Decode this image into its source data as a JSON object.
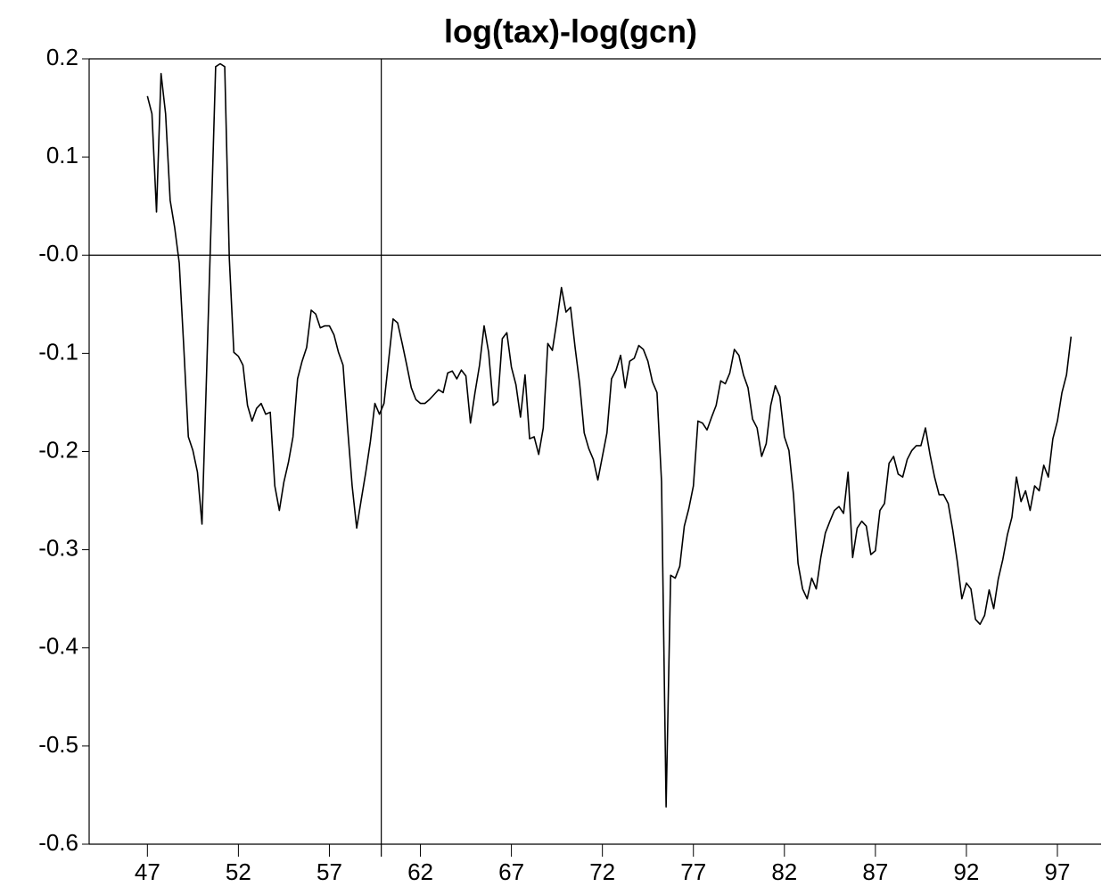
{
  "chart_data": {
    "type": "line",
    "title": "log(tax)-log(gcn)",
    "color": "#000000",
    "x": [
      47,
      47.25,
      47.5,
      47.75,
      48,
      48.25,
      48.5,
      48.75,
      49,
      49.25,
      49.5,
      49.75,
      50,
      50.25,
      50.5,
      50.75,
      51,
      51.25,
      51.5,
      51.75,
      52,
      52.25,
      52.5,
      52.75,
      53,
      53.25,
      53.5,
      53.75,
      54,
      54.25,
      54.5,
      54.75,
      55,
      55.25,
      55.5,
      55.75,
      56,
      56.25,
      56.5,
      56.75,
      57,
      57.25,
      57.5,
      57.75,
      58,
      58.25,
      58.5,
      58.75,
      59,
      59.25,
      59.5,
      59.75,
      60,
      60.25,
      60.5,
      60.75,
      61,
      61.25,
      61.5,
      61.75,
      62,
      62.25,
      62.5,
      62.75,
      63,
      63.25,
      63.5,
      63.75,
      64,
      64.25,
      64.5,
      64.75,
      65,
      65.25,
      65.5,
      65.75,
      66,
      66.25,
      66.5,
      66.75,
      67,
      67.25,
      67.5,
      67.75,
      68,
      68.25,
      68.5,
      68.75,
      69,
      69.25,
      69.5,
      69.75,
      70,
      70.25,
      70.5,
      70.75,
      71,
      71.25,
      71.5,
      71.75,
      72,
      72.25,
      72.5,
      72.75,
      73,
      73.25,
      73.5,
      73.75,
      74,
      74.25,
      74.5,
      74.75,
      75,
      75.25,
      75.5,
      75.75,
      76,
      76.25,
      76.5,
      76.75,
      77,
      77.25,
      77.5,
      77.75,
      78,
      78.25,
      78.5,
      78.75,
      79,
      79.25,
      79.5,
      79.75,
      80,
      80.25,
      80.5,
      80.75,
      81,
      81.25,
      81.5,
      81.75,
      82,
      82.25,
      82.5,
      82.75,
      83,
      83.25,
      83.5,
      83.75,
      84,
      84.25,
      84.5,
      84.75,
      85,
      85.25,
      85.5,
      85.75,
      86,
      86.25,
      86.5,
      86.75,
      87,
      87.25,
      87.5,
      87.75,
      88,
      88.25,
      88.5,
      88.75,
      89,
      89.25,
      89.5,
      89.75,
      90,
      90.25,
      90.5,
      90.75,
      91,
      91.25,
      91.5,
      91.75,
      92,
      92.25,
      92.5,
      92.75,
      93,
      93.25,
      93.5,
      93.75,
      94,
      94.25,
      94.5,
      94.75,
      95,
      95.25,
      95.5,
      95.75,
      96,
      96.25,
      96.5,
      96.75,
      97,
      97.25,
      97.5,
      97.75
    ],
    "values": [
      0.162,
      0.144,
      0.044,
      0.185,
      0.144,
      0.056,
      0.028,
      -0.008,
      -0.094,
      -0.185,
      -0.199,
      -0.221,
      -0.274,
      -0.122,
      0.033,
      0.192,
      0.195,
      0.192,
      -0.003,
      -0.099,
      -0.103,
      -0.112,
      -0.153,
      -0.169,
      -0.156,
      -0.151,
      -0.162,
      -0.16,
      -0.235,
      -0.26,
      -0.231,
      -0.211,
      -0.185,
      -0.126,
      -0.108,
      -0.094,
      -0.056,
      -0.06,
      -0.074,
      -0.072,
      -0.072,
      -0.081,
      -0.099,
      -0.112,
      -0.176,
      -0.235,
      -0.278,
      -0.249,
      -0.221,
      -0.19,
      -0.151,
      -0.162,
      -0.151,
      -0.108,
      -0.065,
      -0.069,
      -0.09,
      -0.112,
      -0.135,
      -0.147,
      -0.151,
      -0.151,
      -0.147,
      -0.142,
      -0.137,
      -0.14,
      -0.12,
      -0.118,
      -0.126,
      -0.117,
      -0.123,
      -0.171,
      -0.14,
      -0.112,
      -0.072,
      -0.099,
      -0.153,
      -0.149,
      -0.085,
      -0.079,
      -0.114,
      -0.132,
      -0.165,
      -0.122,
      -0.187,
      -0.185,
      -0.203,
      -0.176,
      -0.09,
      -0.097,
      -0.067,
      -0.033,
      -0.058,
      -0.053,
      -0.094,
      -0.131,
      -0.181,
      -0.197,
      -0.208,
      -0.229,
      -0.205,
      -0.181,
      -0.126,
      -0.117,
      -0.102,
      -0.135,
      -0.108,
      -0.105,
      -0.092,
      -0.096,
      -0.108,
      -0.129,
      -0.14,
      -0.231,
      -0.562,
      -0.326,
      -0.329,
      -0.317,
      -0.276,
      -0.258,
      -0.235,
      -0.169,
      -0.171,
      -0.178,
      -0.165,
      -0.153,
      -0.128,
      -0.131,
      -0.12,
      -0.096,
      -0.102,
      -0.122,
      -0.135,
      -0.167,
      -0.176,
      -0.205,
      -0.192,
      -0.153,
      -0.133,
      -0.144,
      -0.185,
      -0.199,
      -0.244,
      -0.314,
      -0.34,
      -0.35,
      -0.329,
      -0.34,
      -0.308,
      -0.283,
      -0.271,
      -0.26,
      -0.256,
      -0.263,
      -0.221,
      -0.308,
      -0.278,
      -0.271,
      -0.276,
      -0.305,
      -0.301,
      -0.26,
      -0.253,
      -0.212,
      -0.205,
      -0.223,
      -0.226,
      -0.208,
      -0.199,
      -0.194,
      -0.194,
      -0.176,
      -0.203,
      -0.226,
      -0.244,
      -0.244,
      -0.253,
      -0.28,
      -0.312,
      -0.35,
      -0.334,
      -0.34,
      -0.371,
      -0.376,
      -0.367,
      -0.341,
      -0.36,
      -0.33,
      -0.31,
      -0.285,
      -0.267,
      -0.226,
      -0.251,
      -0.24,
      -0.26,
      -0.235,
      -0.24,
      -0.214,
      -0.226,
      -0.187,
      -0.169,
      -0.14,
      -0.122,
      -0.083
    ],
    "xlim": [
      43.8,
      99.4
    ],
    "xticks": [
      47,
      52,
      57,
      62,
      67,
      72,
      77,
      82,
      87,
      92,
      97
    ],
    "ylim": [
      -0.6,
      0.2
    ],
    "yticks": [
      0.2,
      0.1,
      {
        "value": 0,
        "label": "-0.0"
      },
      -0.1,
      -0.2,
      -0.3,
      -0.4,
      -0.5,
      -0.6
    ],
    "reference_lines": {
      "x": 59.85,
      "y": 0
    }
  }
}
